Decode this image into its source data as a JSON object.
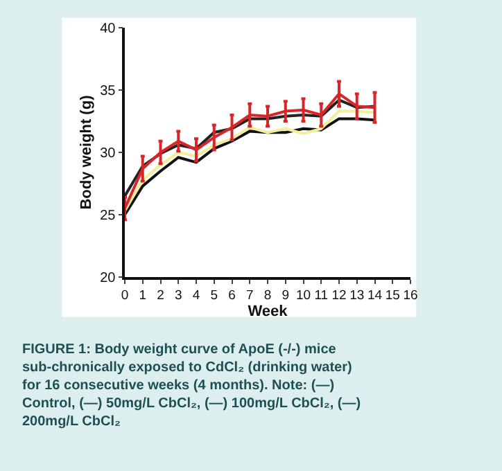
{
  "chart_data": {
    "type": "line",
    "xlabel": "Week",
    "ylabel": "Body weight (g)",
    "x": [
      0,
      1,
      2,
      3,
      4,
      5,
      6,
      7,
      8,
      9,
      10,
      11,
      12,
      13,
      14
    ],
    "xlim": [
      0,
      16
    ],
    "xticks": [
      0,
      1,
      2,
      3,
      4,
      5,
      6,
      7,
      8,
      9,
      10,
      11,
      12,
      13,
      14,
      15,
      16
    ],
    "ylim": [
      20,
      40
    ],
    "yticks": [
      20,
      25,
      30,
      35,
      40
    ],
    "marker": "none",
    "line_style": "solid",
    "series": [
      {
        "color": "#111111",
        "values": [
          25.0,
          27.3,
          28.5,
          29.6,
          29.2,
          30.3,
          30.9,
          31.7,
          31.6,
          31.6,
          31.9,
          31.8,
          32.7,
          32.7,
          32.6
        ]
      },
      {
        "color": "#f2ee9a",
        "values": [
          25.3,
          27.8,
          29.0,
          30.0,
          29.7,
          30.6,
          31.1,
          32.0,
          31.6,
          31.9,
          31.5,
          31.9,
          33.3,
          33.3,
          33.2
        ]
      },
      {
        "color": "#222222",
        "values": [
          26.5,
          28.9,
          29.9,
          30.6,
          30.3,
          31.6,
          31.9,
          32.7,
          32.7,
          32.9,
          33.0,
          32.9,
          34.2,
          33.6,
          33.7
        ]
      },
      {
        "color": "#d7262a",
        "values": [
          25.5,
          28.7,
          30.0,
          30.9,
          30.2,
          31.2,
          32.0,
          33.0,
          32.9,
          33.3,
          33.4,
          33.0,
          34.7,
          33.7,
          33.6
        ],
        "errors": [
          0.9,
          1.0,
          0.9,
          0.8,
          0.9,
          1.0,
          1.0,
          0.9,
          0.8,
          0.8,
          0.9,
          0.9,
          1.0,
          1.0,
          1.2
        ]
      }
    ],
    "annotations": [
      "FIGURE 1: Body weight curve of ApoE (-/-) mice sub-chronically exposed to CdCl₂ (drinking water) for 16 consecutive weeks (4 months). Note: (—) Control, (—) 50mg/L CbCl₂, (—) 100mg/L CbCl₂, (—) 200mg/L CbCl₂"
    ]
  }
}
